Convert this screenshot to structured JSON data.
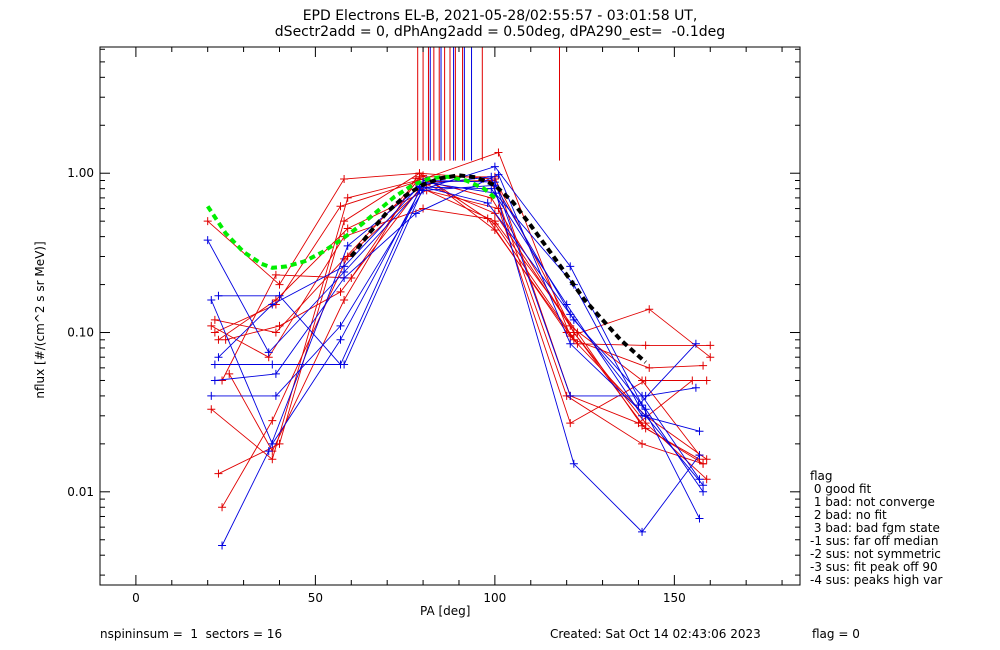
{
  "title_line1": "EPD Electrons EL-B, 2021-05-28/02:55:57 - 03:01:58 UT,",
  "title_line2": "dSectr2add = 0, dPhAng2add = 0.50deg, dPA290_est=  -0.1deg",
  "footer": {
    "left": "nspininsum =  1  sectors = 16",
    "created": "Created: Sat Oct 14 02:43:06 2023",
    "flag": "flag = 0"
  },
  "flag_legend": {
    "title": "flag",
    "items": [
      " 0 good fit",
      " 1 bad: not converge",
      " 2 bad: no fit",
      " 3 bad: bad fgm state",
      "-1 sus: far off median",
      "-2 sus: not symmetric",
      "-3 sus: fit peak off 90",
      "-4 sus: peaks high var"
    ]
  },
  "colors": {
    "red": "#e00000",
    "blue": "#0000e0",
    "green": "#00ee00",
    "black": "#000000"
  },
  "chart_data": {
    "type": "line",
    "xlabel": "PA [deg]",
    "ylabel": "nflux [#/(cm^2 s sr MeV)]",
    "xlim": [
      -10,
      185
    ],
    "ylim": [
      0.0026,
      6.2
    ],
    "yscale": "log",
    "xticks": [
      0,
      50,
      100,
      150
    ],
    "xtick_labels": [
      "0",
      "50",
      "100",
      "150"
    ],
    "yticks": [
      0.01,
      0.1,
      1.0
    ],
    "ytick_labels": [
      "0.01",
      "0.10",
      "1.00"
    ],
    "vertical_markers": {
      "red_x": [
        78.5,
        80.0,
        81.5,
        83.0,
        84.5,
        86.0,
        87.5,
        89.0,
        91.0,
        96.5,
        118.0
      ],
      "blue_x": [
        82.0,
        85.0,
        88.5,
        91.5,
        93.5
      ],
      "y_top": 6.2,
      "y_bottom": 1.2
    },
    "series": [
      {
        "color": "red",
        "x": [
          20,
          40,
          58,
          79,
          100,
          122,
          142,
          159
        ],
        "y": [
          0.5,
          0.2,
          0.92,
          1.0,
          0.92,
          0.1,
          0.027,
          0.012
        ]
      },
      {
        "color": "red",
        "x": [
          21,
          38,
          59,
          80,
          101,
          121,
          143,
          160
        ],
        "y": [
          0.033,
          0.016,
          0.7,
          0.92,
          1.35,
          0.095,
          0.14,
          0.07
        ]
      },
      {
        "color": "red",
        "x": [
          22,
          39,
          57,
          78,
          99,
          120,
          141,
          158
        ],
        "y": [
          0.1,
          0.15,
          0.62,
          0.88,
          0.9,
          0.04,
          0.02,
          0.015
        ]
      },
      {
        "color": "red",
        "x": [
          23,
          40,
          58,
          79,
          100,
          123,
          142,
          160
        ],
        "y": [
          0.013,
          0.02,
          0.5,
          1.0,
          0.48,
          0.085,
          0.083,
          0.083
        ]
      },
      {
        "color": "red",
        "x": [
          24,
          38,
          59,
          81,
          100,
          121,
          141,
          157
        ],
        "y": [
          0.008,
          0.028,
          0.3,
          0.85,
          0.56,
          0.11,
          0.05,
          0.017
        ]
      },
      {
        "color": "red",
        "x": [
          22,
          39,
          58,
          80,
          100,
          122,
          143,
          158
        ],
        "y": [
          0.12,
          0.1,
          0.29,
          0.97,
          0.44,
          0.09,
          0.06,
          0.062
        ]
      },
      {
        "color": "red",
        "x": [
          25,
          40,
          57,
          79,
          101,
          121,
          142,
          159
        ],
        "y": [
          0.09,
          0.11,
          0.18,
          0.8,
          0.6,
          0.027,
          0.05,
          0.05
        ]
      },
      {
        "color": "red",
        "x": [
          26,
          38,
          58,
          78,
          99,
          122,
          142,
          157
        ],
        "y": [
          0.055,
          0.018,
          0.16,
          0.93,
          0.7,
          0.1,
          0.025,
          0.016
        ]
      },
      {
        "color": "red",
        "x": [
          23,
          39,
          59,
          81,
          100,
          123,
          141,
          158
        ],
        "y": [
          0.09,
          0.16,
          0.45,
          0.78,
          0.5,
          0.1,
          0.026,
          0.015
        ]
      },
      {
        "color": "red",
        "x": [
          21,
          37,
          58,
          80,
          98,
          120,
          142,
          159
        ],
        "y": [
          0.11,
          0.07,
          0.4,
          0.6,
          0.52,
          0.1,
          0.03,
          0.016
        ]
      },
      {
        "color": "red",
        "x": [
          24,
          39,
          60,
          79,
          100,
          121,
          140,
          155
        ],
        "y": [
          0.05,
          0.23,
          0.22,
          0.95,
          0.95,
          0.04,
          0.027,
          0.05
        ]
      },
      {
        "color": "blue",
        "x": [
          20,
          37,
          58,
          79,
          100,
          121,
          141,
          157
        ],
        "y": [
          0.38,
          0.075,
          0.24,
          0.78,
          1.1,
          0.26,
          0.035,
          0.0068
        ]
      },
      {
        "color": "blue",
        "x": [
          21,
          38,
          57,
          80,
          99,
          122,
          141,
          157
        ],
        "y": [
          0.16,
          0.02,
          0.09,
          0.85,
          0.95,
          0.015,
          0.0056,
          0.017
        ]
      },
      {
        "color": "blue",
        "x": [
          22,
          39,
          58,
          78,
          101,
          121,
          142,
          158
        ],
        "y": [
          0.05,
          0.055,
          0.22,
          0.56,
          0.98,
          0.085,
          0.03,
          0.011
        ]
      },
      {
        "color": "blue",
        "x": [
          23,
          40,
          57,
          80,
          100,
          122,
          140,
          156
        ],
        "y": [
          0.17,
          0.17,
          0.063,
          0.88,
          0.75,
          0.2,
          0.035,
          0.085
        ]
      },
      {
        "color": "blue",
        "x": [
          24,
          37,
          59,
          79,
          99,
          120,
          141,
          157
        ],
        "y": [
          0.0046,
          0.018,
          0.35,
          0.82,
          0.8,
          0.15,
          0.03,
          0.024
        ]
      },
      {
        "color": "blue",
        "x": [
          22,
          38,
          58,
          81,
          100,
          121,
          142,
          156
        ],
        "y": [
          0.063,
          0.063,
          0.063,
          0.9,
          0.88,
          0.04,
          0.04,
          0.045
        ]
      },
      {
        "color": "blue",
        "x": [
          21,
          39,
          57,
          80,
          100,
          122,
          141,
          157
        ],
        "y": [
          0.04,
          0.04,
          0.11,
          0.78,
          0.84,
          0.12,
          0.04,
          0.012
        ]
      },
      {
        "color": "blue",
        "x": [
          23,
          38,
          58,
          79,
          98,
          121,
          142,
          158
        ],
        "y": [
          0.07,
          0.15,
          0.26,
          0.83,
          0.65,
          0.13,
          0.033,
          0.01
        ]
      }
    ],
    "fits": [
      {
        "color": "green",
        "style": "dashed",
        "x": [
          20,
          25,
          30,
          35,
          38,
          42,
          47,
          52,
          57,
          62,
          67,
          72,
          77,
          82,
          87,
          92,
          97,
          100
        ],
        "y": [
          0.62,
          0.42,
          0.32,
          0.27,
          0.255,
          0.26,
          0.28,
          0.32,
          0.38,
          0.46,
          0.57,
          0.71,
          0.84,
          0.93,
          0.95,
          0.9,
          0.8,
          0.7
        ]
      },
      {
        "color": "black",
        "style": "dashed",
        "x": [
          60,
          65,
          70,
          75,
          80,
          85,
          90,
          95,
          100,
          105,
          110,
          115,
          120,
          125,
          130,
          135,
          142
        ],
        "y": [
          0.3,
          0.42,
          0.57,
          0.72,
          0.85,
          0.93,
          0.97,
          0.94,
          0.84,
          0.66,
          0.47,
          0.33,
          0.23,
          0.16,
          0.12,
          0.09,
          0.065
        ]
      }
    ]
  }
}
